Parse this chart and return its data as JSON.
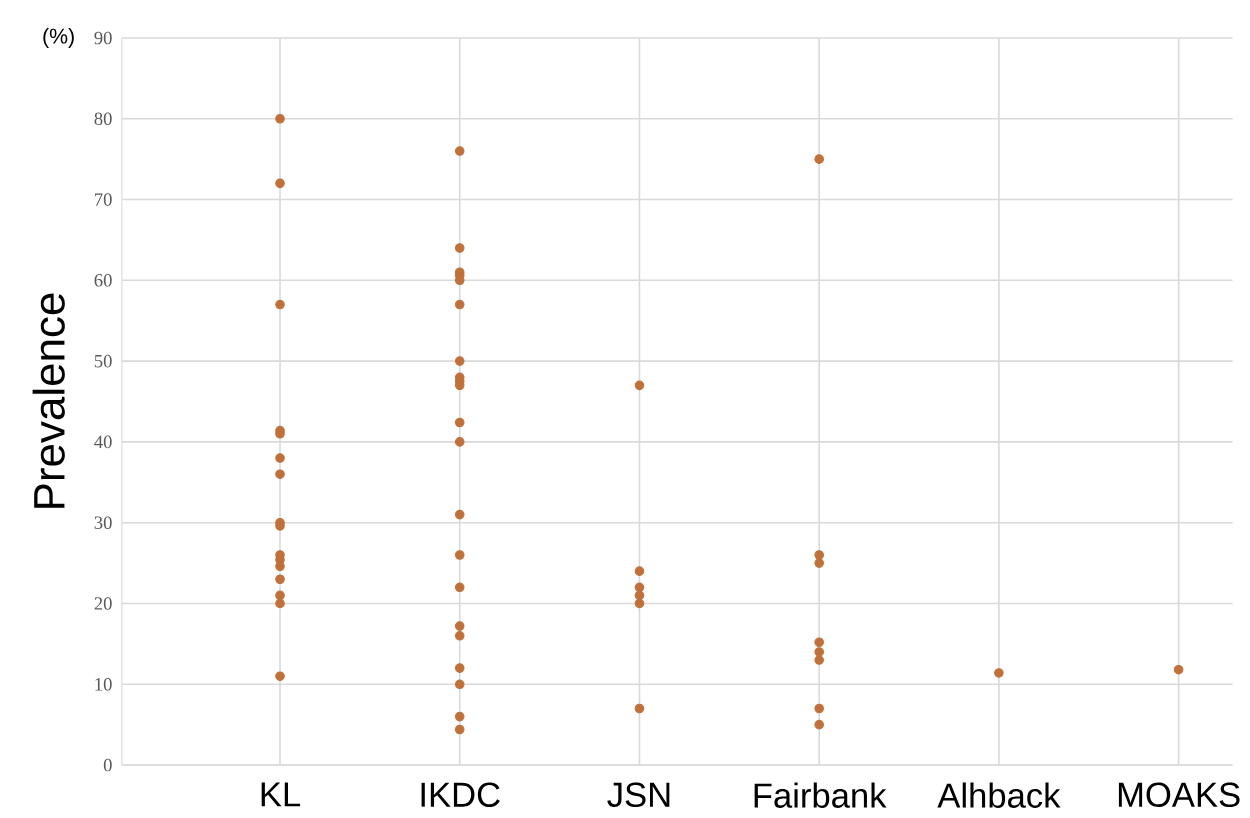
{
  "chart_data": {
    "type": "scatter",
    "ylabel": "Prevalence",
    "annotations": [
      "(%)"
    ],
    "categories": [
      "KL",
      "IKDC",
      "JSN",
      "Fairbank",
      "Alhback",
      "MOAKS"
    ],
    "ylim": [
      0,
      90
    ],
    "yticks": [
      0,
      10,
      20,
      30,
      40,
      50,
      60,
      70,
      80,
      90
    ],
    "grid": true,
    "marker": "circle",
    "series": [
      {
        "color": "#c0703a",
        "x": [
          "KL",
          "KL",
          "KL",
          "KL",
          "KL",
          "KL",
          "KL",
          "KL",
          "KL",
          "KL",
          "KL",
          "KL",
          "KL",
          "KL",
          "KL",
          "KL",
          "IKDC",
          "IKDC",
          "IKDC",
          "IKDC",
          "IKDC",
          "IKDC",
          "IKDC",
          "IKDC",
          "IKDC",
          "IKDC",
          "IKDC",
          "IKDC",
          "IKDC",
          "IKDC",
          "IKDC",
          "IKDC",
          "IKDC",
          "IKDC",
          "IKDC",
          "IKDC",
          "IKDC",
          "JSN",
          "JSN",
          "JSN",
          "JSN",
          "JSN",
          "JSN",
          "Fairbank",
          "Fairbank",
          "Fairbank",
          "Fairbank",
          "Fairbank",
          "Fairbank",
          "Fairbank",
          "Fairbank",
          "Alhback",
          "MOAKS"
        ],
        "values": [
          80,
          72,
          57,
          41.4,
          41,
          38,
          36,
          30,
          29.6,
          26,
          25.4,
          24.6,
          23,
          21,
          20,
          11,
          76,
          64,
          61,
          60.6,
          60,
          57,
          50,
          48,
          47.5,
          47,
          42.4,
          40,
          31,
          26,
          22,
          17.2,
          16,
          12,
          10,
          6,
          4.4,
          47,
          24,
          22,
          21,
          20,
          7,
          75,
          26,
          25,
          15.2,
          14,
          13,
          7,
          5,
          11.4,
          11.8
        ]
      }
    ]
  }
}
